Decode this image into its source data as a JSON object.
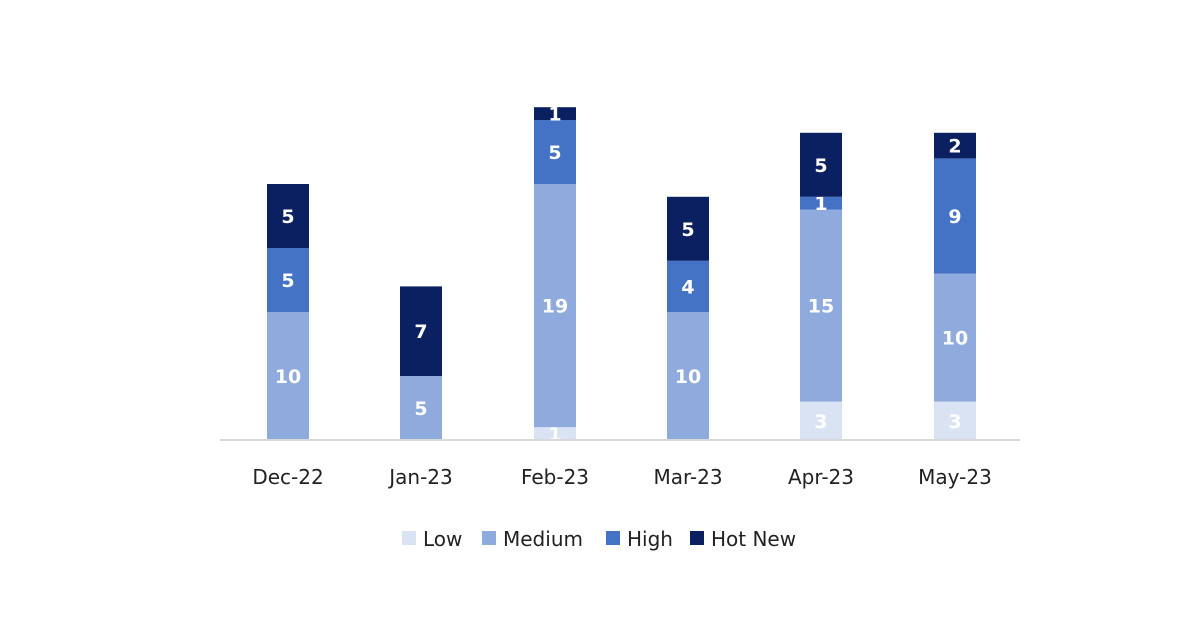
{
  "chart_data": {
    "type": "bar",
    "stacked": true,
    "categories": [
      "Dec-22",
      "Jan-23",
      "Feb-23",
      "Mar-23",
      "Apr-23",
      "May-23"
    ],
    "series": [
      {
        "name": "Low",
        "color": "#dae3f3",
        "values": [
          0,
          0,
          1,
          0,
          3,
          3
        ]
      },
      {
        "name": "Medium",
        "color": "#8faadc",
        "values": [
          10,
          5,
          19,
          10,
          15,
          10
        ]
      },
      {
        "name": "High",
        "color": "#4472c4",
        "values": [
          5,
          0,
          5,
          4,
          1,
          9
        ]
      },
      {
        "name": "Hot New",
        "color": "#0b2060",
        "values": [
          5,
          7,
          1,
          5,
          5,
          2
        ]
      }
    ],
    "ylim": [
      0,
      26
    ],
    "grid": false,
    "legend": "bottom",
    "title": "",
    "xlabel": "",
    "ylabel": ""
  }
}
